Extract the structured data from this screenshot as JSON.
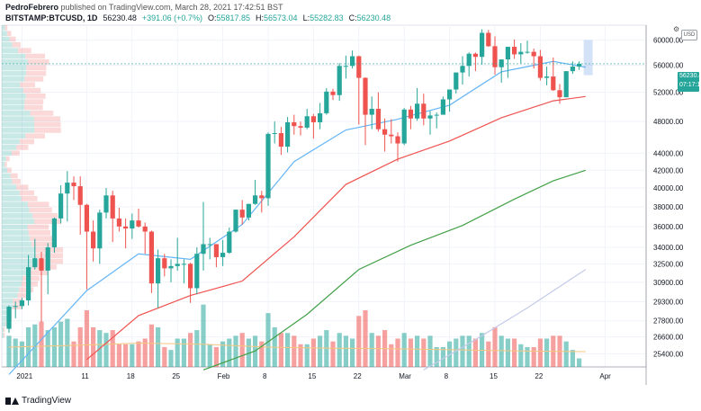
{
  "header": {
    "author": "PedroFebrero",
    "published_text": "published on TradingView.com, March 28, 2021 17:42:51 BST",
    "symbol": "BITSTAMP:BTCUSD, 1D",
    "last": "56230.48",
    "change": "+391.06 (+0.7%)",
    "o_label": "O:",
    "o_value": "55817.85",
    "h_label": "H:",
    "h_value": "56573.04",
    "l_label": "L:",
    "l_value": "55282.83",
    "c_label": "C:",
    "c_value": "56230.48"
  },
  "price_tag": {
    "price": "56230.48",
    "countdown": "07:17:10"
  },
  "usd_label": "USD",
  "footer": {
    "brand": "TradingView"
  },
  "colors": {
    "up": "#26a69a",
    "down": "#ef5350",
    "ma_fast": "#64b5f6",
    "ma_mid": "#ef5350",
    "ma_slow": "#43a047",
    "ma_long": "#c5cae9",
    "vol_ma": "#f5c77e"
  },
  "chart_data": {
    "type": "candlestick",
    "y_ticks": [
      "25400.00",
      "26600.00",
      "27800.00",
      "29300.00",
      "30900.00",
      "32500.00",
      "34000.00",
      "36000.00",
      "38000.00",
      "40000.00",
      "42000.00",
      "44000.00",
      "48000.00",
      "52000.00",
      "56000.00",
      "60000.00"
    ],
    "y_scale": "log",
    "ylim": [
      24500,
      62500
    ],
    "x_ticks": [
      {
        "label": "2021",
        "date": "2021-01-01"
      },
      {
        "label": "11",
        "date": "2021-01-11"
      },
      {
        "label": "18",
        "date": "2021-01-18"
      },
      {
        "label": "25",
        "date": "2021-01-25"
      },
      {
        "label": "Feb",
        "date": "2021-02-01"
      },
      {
        "label": "8",
        "date": "2021-02-08"
      },
      {
        "label": "15",
        "date": "2021-02-15"
      },
      {
        "label": "22",
        "date": "2021-02-22"
      },
      {
        "label": "Mar",
        "date": "2021-03-01"
      },
      {
        "label": "8",
        "date": "2021-03-08"
      },
      {
        "label": "15",
        "date": "2021-03-15"
      },
      {
        "label": "22",
        "date": "2021-03-22"
      },
      {
        "label": "Apr",
        "date": "2021-04-01"
      }
    ],
    "ohlc": [
      {
        "date": "2020-12-30",
        "o": 27200,
        "h": 29000,
        "l": 26900,
        "c": 28900,
        "v": 0.55
      },
      {
        "date": "2020-12-31",
        "o": 28900,
        "h": 29300,
        "l": 28000,
        "c": 28950,
        "v": 0.5
      },
      {
        "date": "2021-01-01",
        "o": 28950,
        "h": 29600,
        "l": 28700,
        "c": 29400,
        "v": 0.45
      },
      {
        "date": "2021-01-02",
        "o": 29400,
        "h": 33300,
        "l": 29000,
        "c": 32200,
        "v": 0.7
      },
      {
        "date": "2021-01-03",
        "o": 32200,
        "h": 34800,
        "l": 32000,
        "c": 33000,
        "v": 0.75
      },
      {
        "date": "2021-01-04",
        "o": 33000,
        "h": 33600,
        "l": 27700,
        "c": 31900,
        "v": 0.8
      },
      {
        "date": "2021-01-05",
        "o": 31900,
        "h": 34400,
        "l": 29900,
        "c": 34000,
        "v": 0.65
      },
      {
        "date": "2021-01-06",
        "o": 34000,
        "h": 36900,
        "l": 33500,
        "c": 36800,
        "v": 0.7
      },
      {
        "date": "2021-01-07",
        "o": 36800,
        "h": 40300,
        "l": 36300,
        "c": 39400,
        "v": 0.8
      },
      {
        "date": "2021-01-08",
        "o": 39400,
        "h": 41900,
        "l": 36500,
        "c": 40600,
        "v": 0.85
      },
      {
        "date": "2021-01-09",
        "o": 40600,
        "h": 41300,
        "l": 38700,
        "c": 40200,
        "v": 0.45
      },
      {
        "date": "2021-01-10",
        "o": 40200,
        "h": 41300,
        "l": 35200,
        "c": 38200,
        "v": 0.7
      },
      {
        "date": "2021-01-11",
        "o": 38200,
        "h": 38300,
        "l": 30300,
        "c": 35500,
        "v": 1.0
      },
      {
        "date": "2021-01-12",
        "o": 35500,
        "h": 36600,
        "l": 32700,
        "c": 33900,
        "v": 0.7
      },
      {
        "date": "2021-01-13",
        "o": 33900,
        "h": 37700,
        "l": 32500,
        "c": 37400,
        "v": 0.65
      },
      {
        "date": "2021-01-14",
        "o": 37400,
        "h": 40000,
        "l": 36800,
        "c": 39200,
        "v": 0.6
      },
      {
        "date": "2021-01-15",
        "o": 39200,
        "h": 39700,
        "l": 34500,
        "c": 36800,
        "v": 0.65
      },
      {
        "date": "2021-01-16",
        "o": 36800,
        "h": 37900,
        "l": 35500,
        "c": 36000,
        "v": 0.4
      },
      {
        "date": "2021-01-17",
        "o": 36000,
        "h": 36800,
        "l": 33900,
        "c": 35800,
        "v": 0.4
      },
      {
        "date": "2021-01-18",
        "o": 35800,
        "h": 37300,
        "l": 34800,
        "c": 36600,
        "v": 0.4
      },
      {
        "date": "2021-01-19",
        "o": 36600,
        "h": 37800,
        "l": 35900,
        "c": 36000,
        "v": 0.45
      },
      {
        "date": "2021-01-20",
        "o": 36000,
        "h": 36400,
        "l": 33400,
        "c": 35500,
        "v": 0.5
      },
      {
        "date": "2021-01-21",
        "o": 35500,
        "h": 35600,
        "l": 30000,
        "c": 30800,
        "v": 0.75
      },
      {
        "date": "2021-01-22",
        "o": 30800,
        "h": 33800,
        "l": 28800,
        "c": 33000,
        "v": 0.7
      },
      {
        "date": "2021-01-23",
        "o": 33000,
        "h": 33400,
        "l": 31400,
        "c": 32100,
        "v": 0.35
      },
      {
        "date": "2021-01-24",
        "o": 32100,
        "h": 32900,
        "l": 30900,
        "c": 32300,
        "v": 0.3
      },
      {
        "date": "2021-01-25",
        "o": 32300,
        "h": 34900,
        "l": 31900,
        "c": 32500,
        "v": 0.5
      },
      {
        "date": "2021-01-26",
        "o": 32500,
        "h": 32900,
        "l": 30800,
        "c": 32500,
        "v": 0.5
      },
      {
        "date": "2021-01-27",
        "o": 32500,
        "h": 32600,
        "l": 29200,
        "c": 30400,
        "v": 0.6
      },
      {
        "date": "2021-01-28",
        "o": 30400,
        "h": 34000,
        "l": 29900,
        "c": 33400,
        "v": 0.65
      },
      {
        "date": "2021-01-29",
        "o": 33400,
        "h": 38500,
        "l": 31900,
        "c": 34300,
        "v": 1.1
      },
      {
        "date": "2021-01-30",
        "o": 34300,
        "h": 34900,
        "l": 32900,
        "c": 34300,
        "v": 0.4
      },
      {
        "date": "2021-01-31",
        "o": 34300,
        "h": 34300,
        "l": 32200,
        "c": 33100,
        "v": 0.35
      },
      {
        "date": "2021-02-01",
        "o": 33100,
        "h": 34700,
        "l": 32300,
        "c": 33500,
        "v": 0.45
      },
      {
        "date": "2021-02-02",
        "o": 33500,
        "h": 35900,
        "l": 33400,
        "c": 35500,
        "v": 0.5
      },
      {
        "date": "2021-02-03",
        "o": 35500,
        "h": 37700,
        "l": 35400,
        "c": 37700,
        "v": 0.55
      },
      {
        "date": "2021-02-04",
        "o": 37700,
        "h": 38700,
        "l": 36200,
        "c": 36900,
        "v": 0.6
      },
      {
        "date": "2021-02-05",
        "o": 36900,
        "h": 38300,
        "l": 36600,
        "c": 38300,
        "v": 0.5
      },
      {
        "date": "2021-02-06",
        "o": 38300,
        "h": 40900,
        "l": 38200,
        "c": 39200,
        "v": 0.55
      },
      {
        "date": "2021-02-07",
        "o": 39200,
        "h": 39700,
        "l": 37400,
        "c": 38900,
        "v": 0.45
      },
      {
        "date": "2021-02-08",
        "o": 38900,
        "h": 46600,
        "l": 38100,
        "c": 46400,
        "v": 0.95
      },
      {
        "date": "2021-02-09",
        "o": 46400,
        "h": 48000,
        "l": 45200,
        "c": 46500,
        "v": 0.7
      },
      {
        "date": "2021-02-10",
        "o": 46500,
        "h": 47300,
        "l": 43800,
        "c": 44800,
        "v": 0.6
      },
      {
        "date": "2021-02-11",
        "o": 44800,
        "h": 48600,
        "l": 44100,
        "c": 47900,
        "v": 0.6
      },
      {
        "date": "2021-02-12",
        "o": 47900,
        "h": 48900,
        "l": 46300,
        "c": 47400,
        "v": 0.55
      },
      {
        "date": "2021-02-13",
        "o": 47400,
        "h": 48000,
        "l": 46200,
        "c": 47200,
        "v": 0.4
      },
      {
        "date": "2021-02-14",
        "o": 47200,
        "h": 49700,
        "l": 47000,
        "c": 48700,
        "v": 0.4
      },
      {
        "date": "2021-02-15",
        "o": 48700,
        "h": 49000,
        "l": 45800,
        "c": 47900,
        "v": 0.5
      },
      {
        "date": "2021-02-16",
        "o": 47900,
        "h": 50500,
        "l": 47000,
        "c": 49100,
        "v": 0.55
      },
      {
        "date": "2021-02-17",
        "o": 49100,
        "h": 52600,
        "l": 48900,
        "c": 52100,
        "v": 0.65
      },
      {
        "date": "2021-02-18",
        "o": 52100,
        "h": 52500,
        "l": 50900,
        "c": 51600,
        "v": 0.45
      },
      {
        "date": "2021-02-19",
        "o": 51600,
        "h": 56300,
        "l": 50800,
        "c": 55900,
        "v": 0.6
      },
      {
        "date": "2021-02-20",
        "o": 55900,
        "h": 57500,
        "l": 54000,
        "c": 55900,
        "v": 0.55
      },
      {
        "date": "2021-02-21",
        "o": 55900,
        "h": 58300,
        "l": 55500,
        "c": 57400,
        "v": 0.5
      },
      {
        "date": "2021-02-22",
        "o": 57400,
        "h": 57500,
        "l": 47600,
        "c": 54100,
        "v": 0.9
      },
      {
        "date": "2021-02-23",
        "o": 54100,
        "h": 54200,
        "l": 45000,
        "c": 48900,
        "v": 1.0
      },
      {
        "date": "2021-02-24",
        "o": 48900,
        "h": 51400,
        "l": 47000,
        "c": 49700,
        "v": 0.6
      },
      {
        "date": "2021-02-25",
        "o": 49700,
        "h": 52000,
        "l": 46700,
        "c": 47000,
        "v": 0.55
      },
      {
        "date": "2021-02-26",
        "o": 47000,
        "h": 48400,
        "l": 44200,
        "c": 46300,
        "v": 0.65
      },
      {
        "date": "2021-02-27",
        "o": 46300,
        "h": 48300,
        "l": 45200,
        "c": 46100,
        "v": 0.4
      },
      {
        "date": "2021-02-28",
        "o": 46100,
        "h": 46600,
        "l": 43000,
        "c": 45200,
        "v": 0.5
      },
      {
        "date": "2021-03-01",
        "o": 45200,
        "h": 49800,
        "l": 45000,
        "c": 49600,
        "v": 0.6
      },
      {
        "date": "2021-03-02",
        "o": 49600,
        "h": 50100,
        "l": 47000,
        "c": 48400,
        "v": 0.5
      },
      {
        "date": "2021-03-03",
        "o": 48400,
        "h": 52600,
        "l": 48100,
        "c": 50400,
        "v": 0.55
      },
      {
        "date": "2021-03-04",
        "o": 50400,
        "h": 51800,
        "l": 47500,
        "c": 48400,
        "v": 0.5
      },
      {
        "date": "2021-03-05",
        "o": 48400,
        "h": 49400,
        "l": 46300,
        "c": 48800,
        "v": 0.55
      },
      {
        "date": "2021-03-06",
        "o": 48800,
        "h": 49200,
        "l": 47100,
        "c": 48900,
        "v": 0.35
      },
      {
        "date": "2021-03-07",
        "o": 48900,
        "h": 51400,
        "l": 48900,
        "c": 51000,
        "v": 0.35
      },
      {
        "date": "2021-03-08",
        "o": 51000,
        "h": 52400,
        "l": 49300,
        "c": 52400,
        "v": 0.45
      },
      {
        "date": "2021-03-09",
        "o": 52400,
        "h": 54900,
        "l": 51800,
        "c": 54900,
        "v": 0.5
      },
      {
        "date": "2021-03-10",
        "o": 54900,
        "h": 57400,
        "l": 53100,
        "c": 55900,
        "v": 0.55
      },
      {
        "date": "2021-03-11",
        "o": 55900,
        "h": 58000,
        "l": 54300,
        "c": 57800,
        "v": 0.55
      },
      {
        "date": "2021-03-12",
        "o": 57800,
        "h": 58000,
        "l": 55100,
        "c": 57300,
        "v": 0.5
      },
      {
        "date": "2021-03-13",
        "o": 57300,
        "h": 61800,
        "l": 56100,
        "c": 61200,
        "v": 0.6
      },
      {
        "date": "2021-03-14",
        "o": 61200,
        "h": 61700,
        "l": 58900,
        "c": 59000,
        "v": 0.45
      },
      {
        "date": "2021-03-15",
        "o": 59000,
        "h": 60600,
        "l": 54600,
        "c": 55700,
        "v": 0.7
      },
      {
        "date": "2021-03-16",
        "o": 55700,
        "h": 56900,
        "l": 53400,
        "c": 56900,
        "v": 0.55
      },
      {
        "date": "2021-03-17",
        "o": 56900,
        "h": 58900,
        "l": 54100,
        "c": 58900,
        "v": 0.5
      },
      {
        "date": "2021-03-18",
        "o": 58900,
        "h": 60100,
        "l": 57000,
        "c": 57700,
        "v": 0.5
      },
      {
        "date": "2021-03-19",
        "o": 57700,
        "h": 59500,
        "l": 56300,
        "c": 58100,
        "v": 0.4
      },
      {
        "date": "2021-03-20",
        "o": 58100,
        "h": 59900,
        "l": 57800,
        "c": 58100,
        "v": 0.35
      },
      {
        "date": "2021-03-21",
        "o": 58100,
        "h": 58600,
        "l": 55500,
        "c": 57400,
        "v": 0.35
      },
      {
        "date": "2021-03-22",
        "o": 57400,
        "h": 58400,
        "l": 53700,
        "c": 54100,
        "v": 0.5
      },
      {
        "date": "2021-03-23",
        "o": 54100,
        "h": 55800,
        "l": 53000,
        "c": 54300,
        "v": 0.5
      },
      {
        "date": "2021-03-24",
        "o": 54300,
        "h": 57200,
        "l": 52200,
        "c": 52300,
        "v": 0.55
      },
      {
        "date": "2021-03-25",
        "o": 52300,
        "h": 53200,
        "l": 50400,
        "c": 51300,
        "v": 0.55
      },
      {
        "date": "2021-03-26",
        "o": 51300,
        "h": 55100,
        "l": 51300,
        "c": 55100,
        "v": 0.45
      },
      {
        "date": "2021-03-27",
        "o": 55100,
        "h": 56600,
        "l": 54700,
        "c": 55800,
        "v": 0.3
      },
      {
        "date": "2021-03-28",
        "o": 55800,
        "h": 56600,
        "l": 55300,
        "c": 56230,
        "v": 0.15
      }
    ],
    "ma_series": [
      {
        "points": [
          [
            0,
            24000
          ],
          [
            12,
            30200
          ],
          [
            20,
            33400
          ],
          [
            28,
            32900
          ],
          [
            36,
            36200
          ],
          [
            44,
            43000
          ],
          [
            52,
            46900
          ],
          [
            60,
            48300
          ],
          [
            68,
            50200
          ],
          [
            76,
            55000
          ],
          [
            84,
            56600
          ],
          [
            89,
            55700
          ]
        ]
      },
      {
        "points": [
          [
            12,
            25000
          ],
          [
            20,
            28200
          ],
          [
            28,
            29800
          ],
          [
            36,
            31000
          ],
          [
            44,
            35000
          ],
          [
            52,
            40400
          ],
          [
            60,
            43300
          ],
          [
            68,
            45500
          ],
          [
            76,
            48500
          ],
          [
            84,
            50800
          ],
          [
            89,
            51400
          ]
        ]
      },
      {
        "points": [
          [
            30,
            24300
          ],
          [
            38,
            25600
          ],
          [
            46,
            28300
          ],
          [
            54,
            32000
          ],
          [
            62,
            34200
          ],
          [
            70,
            36100
          ],
          [
            78,
            38800
          ],
          [
            84,
            40800
          ],
          [
            89,
            42000
          ]
        ]
      },
      {
        "points": [
          [
            64,
            24300
          ],
          [
            72,
            26400
          ],
          [
            80,
            28800
          ],
          [
            89,
            32000
          ]
        ]
      }
    ],
    "volume_ma": [
      [
        0,
        0.35
      ],
      [
        10,
        0.38
      ],
      [
        20,
        0.42
      ],
      [
        30,
        0.4
      ],
      [
        40,
        0.35
      ],
      [
        50,
        0.33
      ],
      [
        60,
        0.32
      ],
      [
        70,
        0.3
      ],
      [
        80,
        0.28
      ],
      [
        89,
        0.27
      ]
    ]
  }
}
